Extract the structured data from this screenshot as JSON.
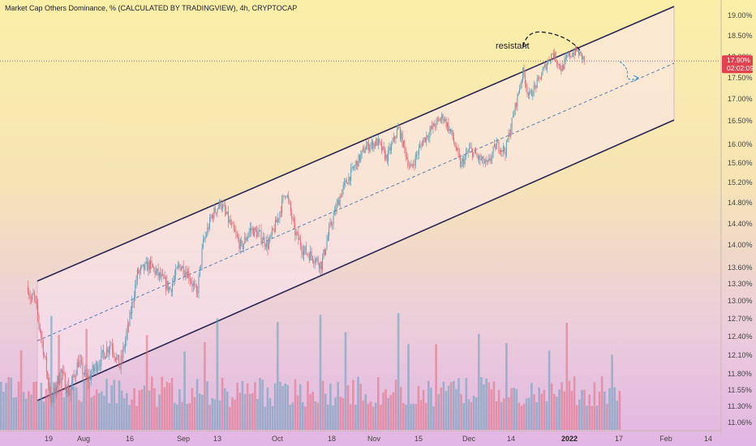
{
  "header": {
    "title": "Market Cap Others Dominance, % (CALCULATED BY TRADINGVIEW), 4h, CRYPTOCAP"
  },
  "colors": {
    "bull": "#5e9fb7",
    "bear": "#e36a7a",
    "channel_line": "#2b2552",
    "channel_fill": "#fbe6f0",
    "midline": "#5a7fb0",
    "price_tag_bg": "#e2424f",
    "curve_arrow": "#4a9ad4"
  },
  "chart_data": {
    "type": "candlestick",
    "title": "Market Cap Others Dominance, % (CALCULATED BY TRADINGVIEW), 4h, CRYPTOCAP",
    "y_axis": {
      "unit": "%",
      "ylim": [
        10.95,
        19.25
      ],
      "tick_labels": [
        "19.00%",
        "18.50%",
        "18.00%",
        "17.50%",
        "17.00%",
        "16.50%",
        "16.00%",
        "15.60%",
        "15.20%",
        "14.80%",
        "14.40%",
        "14.00%",
        "13.60%",
        "13.30%",
        "13.00%",
        "12.70%",
        "12.40%",
        "12.10%",
        "11.80%",
        "11.55%",
        "11.30%",
        "11.06%"
      ],
      "tick_values": [
        19.0,
        18.5,
        18.0,
        17.5,
        17.0,
        16.5,
        16.0,
        15.6,
        15.2,
        14.8,
        14.4,
        14.0,
        13.6,
        13.3,
        13.0,
        12.7,
        12.4,
        12.1,
        11.8,
        11.55,
        11.3,
        11.06
      ]
    },
    "x_axis": {
      "tick_labels": [
        "19",
        "Aug",
        "16",
        "Sep",
        "13",
        "Oct",
        "18",
        "Nov",
        "15",
        "Dec",
        "14",
        "2022",
        "17",
        "Feb",
        "14"
      ],
      "tick_dates": [
        "2021-07-19",
        "2021-08-01",
        "2021-08-16",
        "2021-09-01",
        "2021-09-13",
        "2021-10-01",
        "2021-10-18",
        "2021-11-01",
        "2021-11-15",
        "2021-12-01",
        "2021-12-14",
        "2022-01-01",
        "2022-01-17",
        "2022-02-01",
        "2022-02-14"
      ],
      "bold_labels": [
        "2022"
      ]
    },
    "last_price": {
      "value": 17.9,
      "label": "17.90%",
      "countdown": "02:02:09"
    },
    "price_points": [
      [
        "2021-07-12",
        13.25
      ],
      [
        "2021-07-13",
        13.0
      ],
      [
        "2021-07-14",
        13.1
      ],
      [
        "2021-07-16",
        12.55
      ],
      [
        "2021-07-18",
        11.95
      ],
      [
        "2021-07-20",
        11.35
      ],
      [
        "2021-07-23",
        11.85
      ],
      [
        "2021-07-26",
        11.5
      ],
      [
        "2021-07-29",
        12.0
      ],
      [
        "2021-08-01",
        11.7
      ],
      [
        "2021-08-05",
        12.0
      ],
      [
        "2021-08-09",
        12.3
      ],
      [
        "2021-08-12",
        11.9
      ],
      [
        "2021-08-15",
        12.6
      ],
      [
        "2021-08-18",
        13.5
      ],
      [
        "2021-08-22",
        13.65
      ],
      [
        "2021-08-26",
        13.4
      ],
      [
        "2021-08-29",
        13.2
      ],
      [
        "2021-09-01",
        13.65
      ],
      [
        "2021-09-04",
        13.5
      ],
      [
        "2021-09-07",
        13.1
      ],
      [
        "2021-09-09",
        14.0
      ],
      [
        "2021-09-12",
        14.55
      ],
      [
        "2021-09-15",
        14.8
      ],
      [
        "2021-09-19",
        14.3
      ],
      [
        "2021-09-22",
        13.95
      ],
      [
        "2021-09-25",
        14.3
      ],
      [
        "2021-09-28",
        14.2
      ],
      [
        "2021-10-01",
        14.0
      ],
      [
        "2021-10-04",
        14.45
      ],
      [
        "2021-10-07",
        15.05
      ],
      [
        "2021-10-10",
        14.25
      ],
      [
        "2021-10-13",
        13.9
      ],
      [
        "2021-10-16",
        13.8
      ],
      [
        "2021-10-19",
        13.65
      ],
      [
        "2021-10-22",
        14.35
      ],
      [
        "2021-10-26",
        15.05
      ],
      [
        "2021-10-30",
        15.5
      ],
      [
        "2021-11-03",
        15.95
      ],
      [
        "2021-11-07",
        16.05
      ],
      [
        "2021-11-10",
        15.7
      ],
      [
        "2021-11-14",
        16.35
      ],
      [
        "2021-11-18",
        15.45
      ],
      [
        "2021-11-22",
        16.05
      ],
      [
        "2021-11-26",
        16.4
      ],
      [
        "2021-11-29",
        16.6
      ],
      [
        "2021-12-02",
        16.2
      ],
      [
        "2021-12-05",
        15.55
      ],
      [
        "2021-12-08",
        15.9
      ],
      [
        "2021-12-11",
        15.7
      ],
      [
        "2021-12-14",
        15.55
      ],
      [
        "2021-12-17",
        16.0
      ],
      [
        "2021-12-20",
        15.85
      ],
      [
        "2021-12-23",
        16.7
      ],
      [
        "2021-12-26",
        17.65
      ],
      [
        "2021-12-28",
        17.05
      ],
      [
        "2021-12-31",
        17.4
      ],
      [
        "2022-01-03",
        17.85
      ],
      [
        "2022-01-05",
        18.1
      ],
      [
        "2022-01-08",
        17.7
      ],
      [
        "2022-01-10",
        18.0
      ],
      [
        "2022-01-13",
        18.15
      ],
      [
        "2022-01-16",
        17.9
      ]
    ],
    "channel": {
      "upper_line": [
        [
          "2021-07-20",
          13.35
        ],
        [
          "2022-02-01",
          19.35
        ]
      ],
      "lower_line": [
        [
          "2021-07-20",
          11.35
        ],
        [
          "2022-02-01",
          16.55
        ]
      ],
      "midline_style": "dashed"
    },
    "volume": {
      "color_rule": "matches candle direction",
      "axis_labels": "none"
    },
    "annotations": [
      {
        "type": "text",
        "text": "resistant"
      },
      {
        "type": "dashed-arc",
        "note": "projection over upper channel line"
      },
      {
        "type": "curved-arrow",
        "direction": "down"
      }
    ],
    "grid": false,
    "legend": "none"
  }
}
